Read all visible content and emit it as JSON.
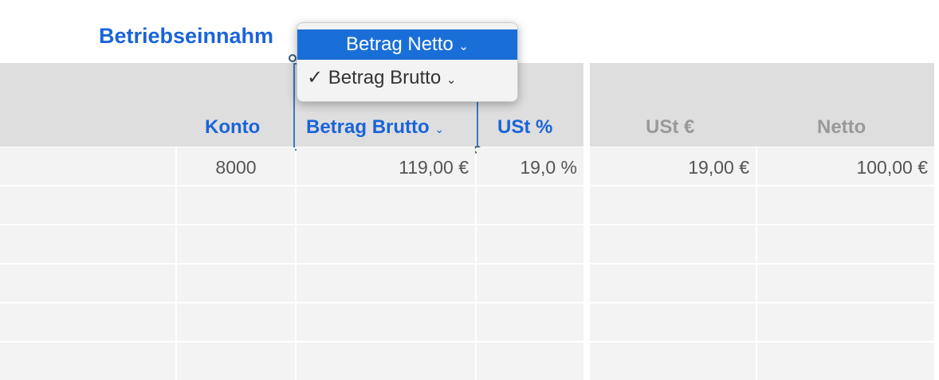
{
  "title": "Betriebseinnahm",
  "popup": {
    "options": [
      {
        "label": "Betrag Netto",
        "chevron": "⌄",
        "highlighted": true
      },
      {
        "label": "Betrag Brutto",
        "chevron": "⌄",
        "checked": true,
        "check": "✓"
      }
    ]
  },
  "columns": {
    "konto": "Konto",
    "brutto": "Betrag Brutto",
    "brutto_chevron": "⌄",
    "ust_pct": "USt %",
    "ust_eur": "USt €",
    "netto": "Netto"
  },
  "rows": [
    {
      "konto": "8000",
      "brutto": "119,00 €",
      "ust_pct": "19,0 %",
      "ust_eur": "19,00 €",
      "netto": "100,00 €"
    }
  ],
  "colors": {
    "accent": "#1a64d8",
    "header_bg": "#dedede",
    "cell_bg": "#f3f3f3"
  }
}
